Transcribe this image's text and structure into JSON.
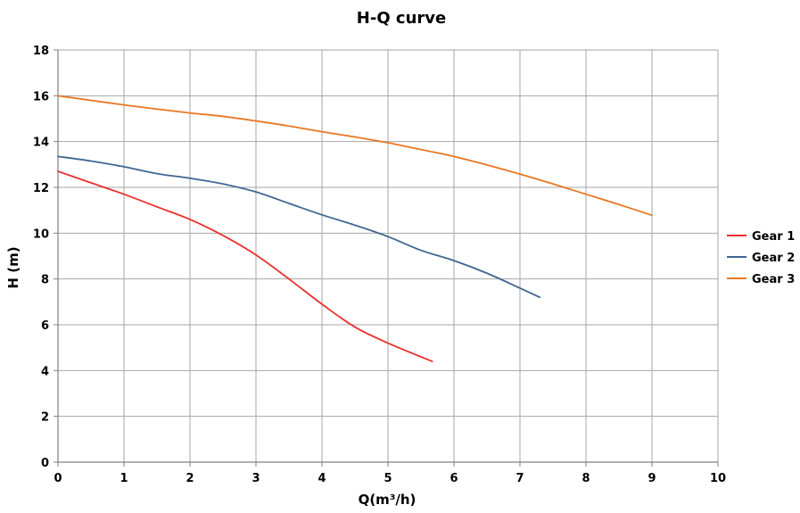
{
  "chart_data": {
    "type": "line",
    "title": "H-Q  curve",
    "xlabel": "Q(m³/h)",
    "ylabel": "H  (m)",
    "xlim": [
      0,
      10
    ],
    "ylim": [
      0,
      18
    ],
    "xticks": [
      "0",
      "1",
      "2",
      "3",
      "4",
      "5",
      "6",
      "7",
      "8",
      "9",
      "10"
    ],
    "yticks": [
      "0",
      "2",
      "4",
      "6",
      "8",
      "10",
      "12",
      "14",
      "16",
      "18"
    ],
    "grid": true,
    "legend_position": "right",
    "series": [
      {
        "name": "Gear 1",
        "color": "#e8312f",
        "points": [
          [
            0,
            12.7
          ],
          [
            0.5,
            12.2
          ],
          [
            1,
            11.7
          ],
          [
            1.5,
            11.15
          ],
          [
            2,
            10.6
          ],
          [
            2.5,
            9.9
          ],
          [
            3,
            9.05
          ],
          [
            3.5,
            8.0
          ],
          [
            4,
            6.9
          ],
          [
            4.5,
            5.9
          ],
          [
            5,
            5.2
          ],
          [
            5.67,
            4.4
          ]
        ]
      },
      {
        "name": "Gear 2",
        "color": "#3e6691",
        "points": [
          [
            0,
            13.35
          ],
          [
            0.5,
            13.15
          ],
          [
            1,
            12.9
          ],
          [
            1.5,
            12.6
          ],
          [
            2,
            12.4
          ],
          [
            2.5,
            12.15
          ],
          [
            3,
            11.8
          ],
          [
            3.5,
            11.3
          ],
          [
            4,
            10.8
          ],
          [
            4.5,
            10.35
          ],
          [
            5,
            9.85
          ],
          [
            5.5,
            9.25
          ],
          [
            6,
            8.8
          ],
          [
            6.5,
            8.25
          ],
          [
            7,
            7.6
          ],
          [
            7.3,
            7.2
          ]
        ]
      },
      {
        "name": "Gear 3",
        "color": "#e87722",
        "points": [
          [
            0,
            16.0
          ],
          [
            0.5,
            15.8
          ],
          [
            1,
            15.6
          ],
          [
            1.5,
            15.42
          ],
          [
            2,
            15.25
          ],
          [
            2.5,
            15.1
          ],
          [
            3,
            14.9
          ],
          [
            3.5,
            14.68
          ],
          [
            4,
            14.43
          ],
          [
            4.5,
            14.2
          ],
          [
            5,
            13.95
          ],
          [
            5.5,
            13.65
          ],
          [
            6,
            13.35
          ],
          [
            6.5,
            12.98
          ],
          [
            7,
            12.58
          ],
          [
            7.5,
            12.15
          ],
          [
            8,
            11.7
          ],
          [
            8.5,
            11.25
          ],
          [
            9,
            10.78
          ]
        ]
      }
    ]
  }
}
